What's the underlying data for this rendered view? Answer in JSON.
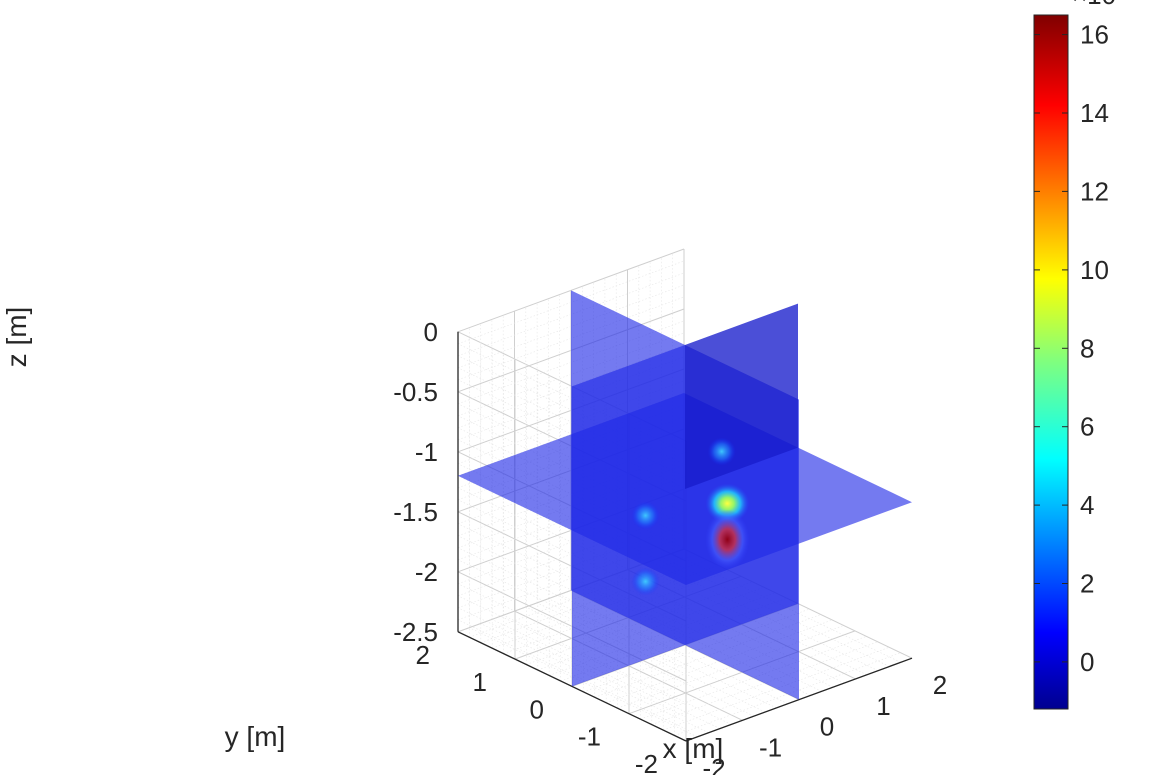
{
  "chart_data": {
    "type": "heatmap",
    "subtype": "3d-orthogonal-slices",
    "title": "",
    "xlabel": "x [m]",
    "ylabel": "y [m]",
    "zlabel": "z [m]",
    "xlim": [
      -2,
      2
    ],
    "ylim": [
      -2,
      2
    ],
    "zlim": [
      -2.5,
      0
    ],
    "x_ticks": [
      "-2",
      "-1",
      "0",
      "1",
      "2"
    ],
    "y_ticks": [
      "-2",
      "-1",
      "0",
      "1",
      "2"
    ],
    "z_ticks": [
      "0",
      "-0.5",
      "-1",
      "-1.5",
      "-2",
      "-2.5"
    ],
    "grid": true,
    "minor_grid": true,
    "colormap": "jet",
    "colorbar": {
      "ticks": [
        "16",
        "14",
        "12",
        "10",
        "8",
        "6",
        "4",
        "2",
        "0"
      ],
      "range": [
        -1.2,
        16.5
      ]
    },
    "slices": [
      {
        "plane": "x",
        "at": 0
      },
      {
        "plane": "y",
        "at": 0
      },
      {
        "plane": "z",
        "at": -1.2
      }
    ],
    "hotspots": [
      {
        "x": 0.75,
        "y": 0.0,
        "z": -1.45,
        "value": 9.5
      },
      {
        "x": 0.75,
        "y": 0.0,
        "z": -1.75,
        "value": 14
      },
      {
        "x": 0.65,
        "y": 0.0,
        "z": -1.0,
        "value": 3
      },
      {
        "x": -0.7,
        "y": 0.0,
        "z": -1.3,
        "value": 3
      },
      {
        "x": -0.7,
        "y": 0.0,
        "z": -1.85,
        "value": 2.5
      }
    ],
    "colors": {
      "slice_fill": "#1e29e6",
      "slice_dark": "#0000aa",
      "axis": "#262626",
      "grid": "#d5d5d5"
    }
  }
}
